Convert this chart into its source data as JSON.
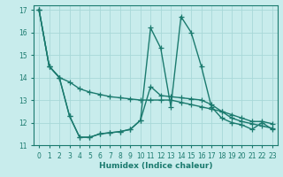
{
  "xlabel": "Humidex (Indice chaleur)",
  "ylabel": "",
  "background_color": "#c8ecec",
  "line_color": "#1a7a6e",
  "grid_color": "#a8d8d8",
  "xlim": [
    -0.5,
    23.5
  ],
  "ylim": [
    11,
    17.2
  ],
  "xticks": [
    0,
    1,
    2,
    3,
    4,
    5,
    6,
    7,
    8,
    9,
    10,
    11,
    12,
    13,
    14,
    15,
    16,
    17,
    18,
    19,
    20,
    21,
    22,
    23
  ],
  "yticks": [
    11,
    12,
    13,
    14,
    15,
    16,
    17
  ],
  "series": [
    {
      "x": [
        0,
        1,
        2,
        3,
        4,
        5,
        6,
        7,
        8,
        9,
        10,
        11,
        12,
        13,
        14,
        15,
        16,
        17,
        18,
        19,
        20,
        21,
        22,
        23
      ],
      "y": [
        17.0,
        14.5,
        14.0,
        13.8,
        13.5,
        13.35,
        13.25,
        13.15,
        13.1,
        13.05,
        13.0,
        13.0,
        13.0,
        13.0,
        12.9,
        12.8,
        12.7,
        12.6,
        12.5,
        12.35,
        12.2,
        12.05,
        12.05,
        11.95
      ]
    },
    {
      "x": [
        0,
        1,
        2,
        3,
        4,
        5,
        6,
        7,
        8,
        9,
        10,
        11,
        12,
        13,
        14,
        15,
        16,
        17,
        18,
        19,
        20,
        21,
        22,
        23
      ],
      "y": [
        17.0,
        14.5,
        14.0,
        12.3,
        11.35,
        11.35,
        11.5,
        11.55,
        11.6,
        11.7,
        12.1,
        16.2,
        15.3,
        12.7,
        16.7,
        16.0,
        14.5,
        12.7,
        12.2,
        12.0,
        11.9,
        11.7,
        12.0,
        11.7
      ]
    },
    {
      "x": [
        0,
        1,
        2,
        3,
        4,
        5,
        6,
        7,
        8,
        9,
        10,
        11,
        12,
        13,
        14,
        15,
        16,
        17,
        18,
        19,
        20,
        21,
        22,
        23
      ],
      "y": [
        17.0,
        14.5,
        14.0,
        12.3,
        11.35,
        11.35,
        11.5,
        11.55,
        11.6,
        11.7,
        12.1,
        13.6,
        13.2,
        13.15,
        13.1,
        13.05,
        13.0,
        12.8,
        12.5,
        12.2,
        12.05,
        11.95,
        11.85,
        11.75
      ]
    }
  ],
  "marker": "+",
  "markersize": 4,
  "linewidth": 1.0
}
